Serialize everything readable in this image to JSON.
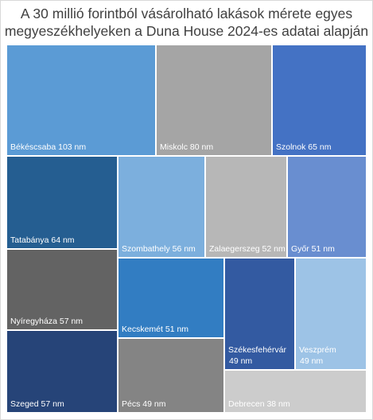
{
  "chart_data": {
    "type": "treemap",
    "title_lines": [
      "A 30 millió forintból vásárolható lakások mérete egyes",
      "megyeszékhelyeken  a Duna House 2024-es adatai alapján"
    ],
    "unit": "nm",
    "items": [
      {
        "name": "Békéscsaba",
        "value": 103,
        "label": "Békéscsaba 103 nm",
        "color": "#5b9bd5"
      },
      {
        "name": "Miskolc",
        "value": 80,
        "label": "Miskolc 80 nm",
        "color": "#a5a5a5"
      },
      {
        "name": "Szolnok",
        "value": 65,
        "label": "Szolnok 65 nm",
        "color": "#4472c4"
      },
      {
        "name": "Tatabánya",
        "value": 64,
        "label": "Tatabánya 64 nm",
        "color": "#255e91"
      },
      {
        "name": "Szombathely",
        "value": 56,
        "label": "Szombathely 56 nm",
        "color": "#7cafdd"
      },
      {
        "name": "Zalaegerszeg",
        "value": 52,
        "label": "Zalaegerszeg 52 nm",
        "color": "#b7b7b7"
      },
      {
        "name": "Győr",
        "value": 51,
        "label": "Győr 51 nm",
        "color": "#698ed0"
      },
      {
        "name": "Nyíregyháza",
        "value": 57,
        "label": "Nyíregyháza 57 nm",
        "color": "#636363"
      },
      {
        "name": "Kecskemét",
        "value": 51,
        "label": "Kecskemét 51 nm",
        "color": "#327dc2"
      },
      {
        "name": "Székesfehérvár",
        "value": 49,
        "label": "Székesfehérvár 49 nm",
        "color": "#335aa1"
      },
      {
        "name": "Veszprém",
        "value": 49,
        "label": "Veszprém 49 nm",
        "color": "#9dc3e6"
      },
      {
        "name": "Szeged",
        "value": 57,
        "label": "Szeged 57 nm",
        "color": "#264478"
      },
      {
        "name": "Pécs",
        "value": 49,
        "label": "Pécs 49 nm",
        "color": "#848484"
      },
      {
        "name": "Debrecen",
        "value": 38,
        "label": "Debrecen 38 nm",
        "color": "#cccccc"
      }
    ]
  }
}
